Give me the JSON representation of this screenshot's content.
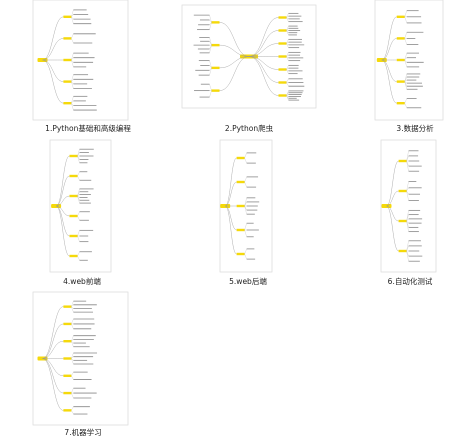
{
  "items": [
    {
      "caption": "1.Python基础和高级编程"
    },
    {
      "caption": "2.Python爬虫"
    },
    {
      "caption": "3.数据分析"
    },
    {
      "caption": "4.web前端"
    },
    {
      "caption": "5.web后端"
    },
    {
      "caption": "6.自动化测试"
    },
    {
      "caption": "7.机器学习"
    }
  ]
}
